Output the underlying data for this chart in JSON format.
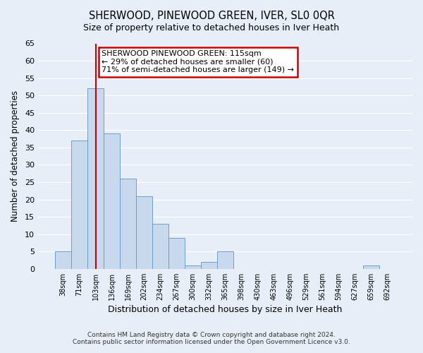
{
  "title": "SHERWOOD, PINEWOOD GREEN, IVER, SL0 0QR",
  "subtitle": "Size of property relative to detached houses in Iver Heath",
  "xlabel": "Distribution of detached houses by size in Iver Heath",
  "ylabel": "Number of detached properties",
  "bar_labels": [
    "38sqm",
    "71sqm",
    "103sqm",
    "136sqm",
    "169sqm",
    "202sqm",
    "234sqm",
    "267sqm",
    "300sqm",
    "332sqm",
    "365sqm",
    "398sqm",
    "430sqm",
    "463sqm",
    "496sqm",
    "529sqm",
    "561sqm",
    "594sqm",
    "627sqm",
    "659sqm",
    "692sqm"
  ],
  "bar_values": [
    5,
    37,
    52,
    39,
    26,
    21,
    13,
    9,
    1,
    2,
    5,
    0,
    0,
    0,
    0,
    0,
    0,
    0,
    0,
    1,
    0
  ],
  "bar_color": "#c9d9ed",
  "bar_edge_color": "#6a9fd0",
  "vline_x": 2,
  "vline_color": "#cc0000",
  "ylim": [
    0,
    65
  ],
  "yticks": [
    0,
    5,
    10,
    15,
    20,
    25,
    30,
    35,
    40,
    45,
    50,
    55,
    60,
    65
  ],
  "annotation_line1": "SHERWOOD PINEWOOD GREEN: 115sqm",
  "annotation_line2": "← 29% of detached houses are smaller (60)",
  "annotation_line3": "71% of semi-detached houses are larger (149) →",
  "annotation_box_facecolor": "#ffffff",
  "annotation_box_edgecolor": "#cc0000",
  "footer_line1": "Contains HM Land Registry data © Crown copyright and database right 2024.",
  "footer_line2": "Contains public sector information licensed under the Open Government Licence v3.0.",
  "bg_color": "#e8eef7",
  "plot_bg_color": "#e8eef7",
  "grid_color": "#ffffff"
}
